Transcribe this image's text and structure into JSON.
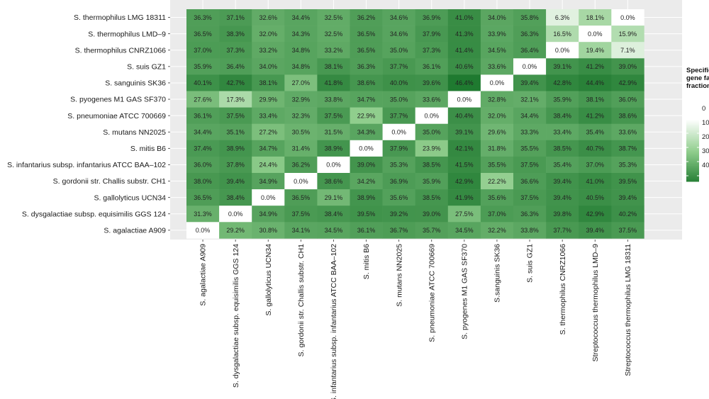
{
  "chart_data": {
    "type": "heatmap",
    "rows": [
      "S. thermophilus LMG 18311",
      "S. thermophilus LMD–9",
      "S. thermophilus CNRZ1066",
      "S. suis GZ1",
      "S. sanguinis SK36",
      "S. pyogenes M1 GAS SF370",
      "S. pneumoniae ATCC 700669",
      "S. mutans NN2025",
      "S. mitis B6",
      "S. infantarius subsp. infantarius ATCC BAA–102",
      "S. gordonii str. Challis substr. CH1",
      "S. gallolyticus UCN34",
      "S. dysgalactiae subsp. equisimilis GGS 124",
      "S. agalactiae A909"
    ],
    "columns": [
      "S. agalactiae A909",
      "S. dysgalactiae subsp. equisimilis GGS 124",
      "S. gallolyticus UCN34",
      "S. gordonii str. Challis substr. CH1",
      "S. infantarius subsp. infantarius ATCC BAA–102",
      "S. mitis B6",
      "S. mutans NN2025",
      "S. pneumoniae ATCC 700669",
      "S. pyogenes M1 GAS SF370",
      "S.sanguinis SK36",
      "S. suis GZ1",
      "S. thermophilus CNRZ1066",
      "Streptococcus thermophilus LMD–9",
      "Streptococcus thermophilus LMG 18311"
    ],
    "values": [
      [
        36.3,
        37.1,
        32.6,
        34.4,
        32.5,
        36.2,
        34.6,
        36.9,
        41.0,
        34.0,
        35.8,
        6.3,
        18.1,
        0.0
      ],
      [
        36.5,
        38.3,
        32.0,
        34.3,
        32.5,
        36.5,
        34.6,
        37.9,
        41.3,
        33.9,
        36.3,
        16.5,
        0.0,
        15.9
      ],
      [
        37.0,
        37.3,
        33.2,
        34.8,
        33.2,
        36.5,
        35.0,
        37.3,
        41.4,
        34.5,
        36.4,
        0.0,
        19.4,
        7.1
      ],
      [
        35.9,
        36.4,
        34.0,
        34.8,
        38.1,
        36.3,
        37.7,
        36.1,
        40.6,
        33.6,
        0.0,
        39.1,
        41.2,
        39.0
      ],
      [
        40.1,
        42.7,
        38.1,
        27.0,
        41.8,
        38.6,
        40.0,
        39.6,
        46.4,
        0.0,
        39.4,
        42.8,
        44.4,
        42.9
      ],
      [
        27.6,
        17.3,
        29.9,
        32.9,
        33.8,
        34.7,
        35.0,
        33.6,
        0.0,
        32.8,
        32.1,
        35.9,
        38.1,
        36.0
      ],
      [
        36.1,
        37.5,
        33.4,
        32.3,
        37.5,
        22.9,
        37.7,
        0.0,
        40.4,
        32.0,
        34.4,
        38.4,
        41.2,
        38.6
      ],
      [
        34.4,
        35.1,
        27.2,
        30.5,
        31.5,
        34.3,
        0.0,
        35.0,
        39.1,
        29.6,
        33.3,
        33.4,
        35.4,
        33.6
      ],
      [
        37.4,
        38.9,
        34.7,
        31.4,
        38.9,
        0.0,
        37.9,
        23.9,
        42.1,
        31.8,
        35.5,
        38.5,
        40.7,
        38.7
      ],
      [
        36.0,
        37.8,
        24.4,
        36.2,
        0.0,
        39.0,
        35.3,
        38.5,
        41.5,
        35.5,
        37.5,
        35.4,
        37.0,
        35.3
      ],
      [
        38.0,
        39.4,
        34.9,
        0.0,
        38.6,
        34.2,
        36.9,
        35.9,
        42.9,
        22.2,
        36.6,
        39.4,
        41.0,
        39.5
      ],
      [
        36.5,
        38.4,
        0.0,
        36.5,
        29.1,
        38.9,
        35.6,
        38.5,
        41.9,
        35.6,
        37.5,
        39.4,
        40.5,
        39.4
      ],
      [
        31.3,
        0.0,
        34.9,
        37.5,
        38.4,
        39.5,
        39.2,
        39.0,
        27.5,
        37.0,
        36.3,
        39.8,
        42.9,
        40.2
      ],
      [
        0.0,
        29.2,
        30.8,
        34.1,
        34.5,
        36.1,
        36.7,
        35.7,
        34.5,
        32.2,
        33.8,
        37.7,
        39.4,
        37.5
      ]
    ],
    "value_suffix": "%",
    "legend": {
      "title_lines": [
        "Specific",
        "gene families",
        "fraction"
      ],
      "ticks": [
        0,
        10,
        20,
        30,
        40
      ],
      "placement": "right"
    },
    "colors": {
      "low": "#ffffff",
      "high": "#1f7a30",
      "panel_background": "#ebebeb",
      "grid": "#ffffff"
    }
  }
}
